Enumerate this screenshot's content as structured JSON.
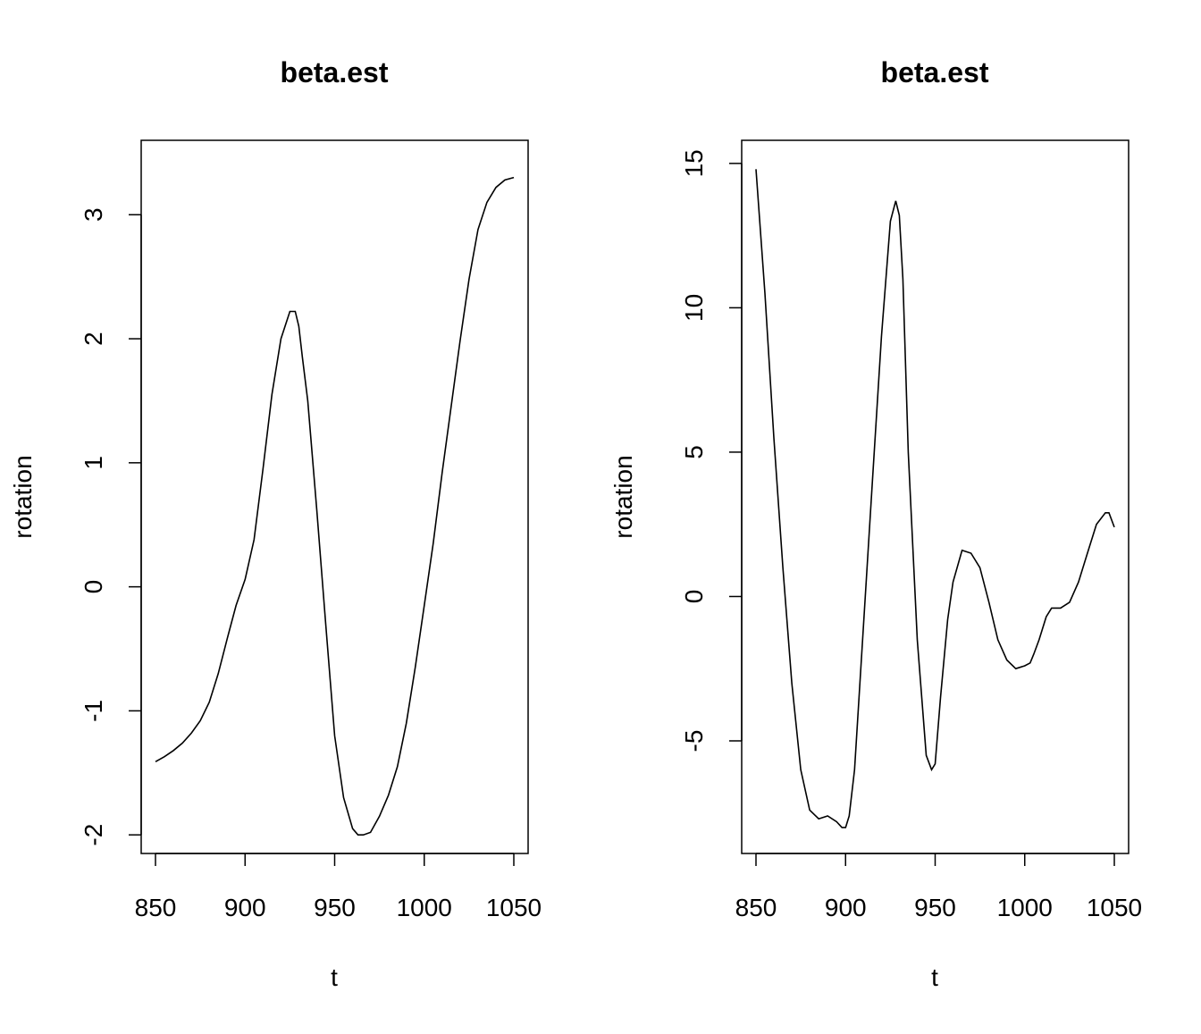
{
  "chart_data": [
    {
      "type": "line",
      "title": "beta.est",
      "xlabel": "t",
      "ylabel": "rotation",
      "xlim": [
        850,
        1050
      ],
      "ylim": [
        -2.15,
        3.6
      ],
      "xticks": [
        850,
        900,
        950,
        1000,
        1050
      ],
      "yticks": [
        -2,
        -1,
        0,
        1,
        2,
        3
      ],
      "grid": false,
      "series": [
        {
          "color": "#000000",
          "x": [
            850,
            855,
            860,
            865,
            870,
            875,
            880,
            885,
            890,
            895,
            900,
            905,
            910,
            915,
            920,
            925,
            928,
            930,
            932,
            935,
            940,
            945,
            950,
            955,
            960,
            963,
            966,
            970,
            975,
            980,
            985,
            990,
            995,
            1000,
            1005,
            1010,
            1015,
            1020,
            1025,
            1030,
            1035,
            1040,
            1045,
            1050
          ],
          "y": [
            -1.41,
            -1.37,
            -1.32,
            -1.26,
            -1.18,
            -1.08,
            -0.93,
            -0.7,
            -0.42,
            -0.15,
            0.06,
            0.38,
            0.95,
            1.55,
            2.0,
            2.22,
            2.22,
            2.1,
            1.85,
            1.5,
            0.62,
            -0.3,
            -1.2,
            -1.7,
            -1.95,
            -2.0,
            -2.0,
            -1.98,
            -1.85,
            -1.68,
            -1.45,
            -1.1,
            -0.65,
            -0.15,
            0.35,
            0.92,
            1.45,
            1.98,
            2.48,
            2.88,
            3.1,
            3.22,
            3.28,
            3.3
          ]
        }
      ]
    },
    {
      "type": "line",
      "title": "beta.est",
      "xlabel": "t",
      "ylabel": "rotation",
      "xlim": [
        850,
        1050
      ],
      "ylim": [
        -8.9,
        15.8
      ],
      "xticks": [
        850,
        900,
        950,
        1000,
        1050
      ],
      "yticks": [
        -5,
        0,
        5,
        10,
        15
      ],
      "grid": false,
      "series": [
        {
          "color": "#000000",
          "x": [
            850,
            855,
            860,
            865,
            870,
            875,
            880,
            885,
            890,
            895,
            898,
            900,
            902,
            905,
            910,
            915,
            920,
            925,
            928,
            930,
            932,
            935,
            940,
            945,
            948,
            950,
            953,
            957,
            960,
            965,
            970,
            975,
            980,
            985,
            990,
            995,
            1000,
            1003,
            1005,
            1008,
            1012,
            1015,
            1020,
            1025,
            1030,
            1035,
            1040,
            1045,
            1047,
            1050
          ],
          "y": [
            14.8,
            10.5,
            5.5,
            1.0,
            -3.0,
            -6.0,
            -7.4,
            -7.7,
            -7.6,
            -7.8,
            -8.0,
            -8.0,
            -7.6,
            -6.0,
            -1.0,
            4.0,
            9.0,
            13.0,
            13.7,
            13.2,
            11.0,
            5.0,
            -1.5,
            -5.5,
            -6.0,
            -5.8,
            -3.5,
            -0.8,
            0.5,
            1.6,
            1.5,
            1.0,
            -0.2,
            -1.5,
            -2.2,
            -2.5,
            -2.4,
            -2.3,
            -2.0,
            -1.5,
            -0.7,
            -0.4,
            -0.4,
            -0.2,
            0.5,
            1.5,
            2.5,
            2.9,
            2.9,
            2.4
          ]
        }
      ]
    }
  ]
}
